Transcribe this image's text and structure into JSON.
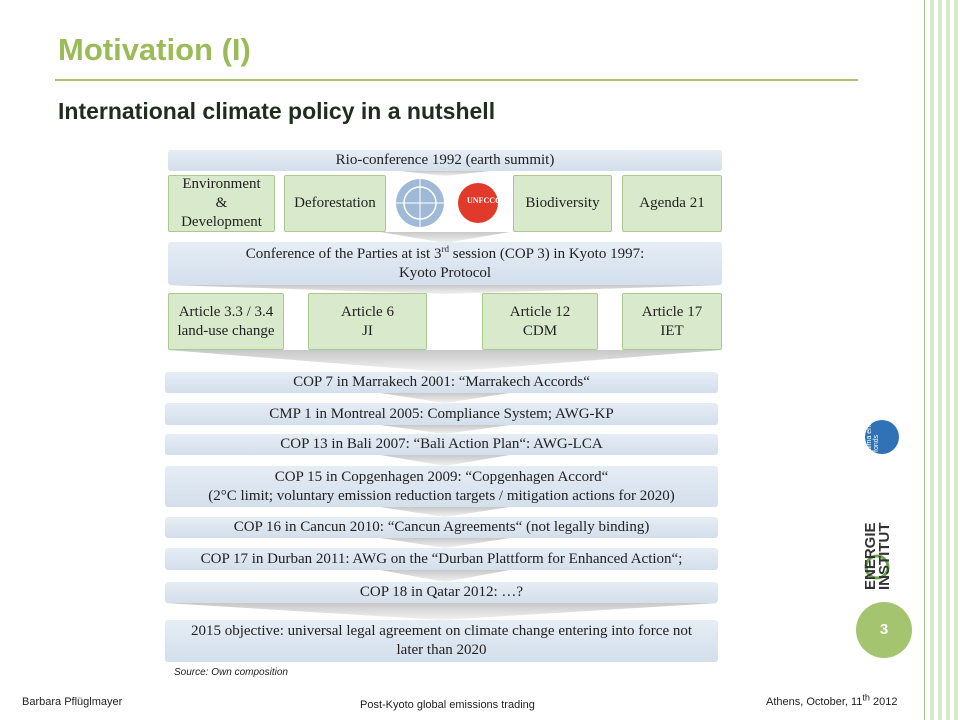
{
  "slide": {
    "title": "Motivation (I)",
    "subtitle": "International climate policy in a nutshell",
    "diagram": {
      "header": "Rio-conference 1992 (earth summit)",
      "topics": [
        [
          "Environment",
          "&",
          "Development"
        ],
        [
          "Deforestation"
        ],
        [
          "Biodiversity"
        ],
        [
          "Agenda 21"
        ]
      ],
      "logo_text": "UNFCCC",
      "cop3": {
        "before": "Conference of the Parties at ist 3",
        "sup": "rd",
        "after": " session (COP 3) in Kyoto 1997:",
        "line2": "Kyoto Protocol"
      },
      "articles": [
        [
          "Article 3.3 / 3.4",
          "land-use change"
        ],
        [
          "Article 6",
          "JI"
        ],
        [
          "Article 12",
          "CDM"
        ],
        [
          "Article 17",
          "IET"
        ]
      ],
      "milestones": [
        [
          "COP 7 in Marrakech 2001: “Marrakech Accords“"
        ],
        [
          "CMP 1 in Montreal 2005: Compliance System; AWG-KP"
        ],
        [
          "COP 13 in Bali 2007: “Bali Action Plan“: AWG-LCA"
        ],
        [
          "COP 15 in Copgenhagen 2009: “Copgenhagen Accord“",
          "(2°C limit; voluntary emission reduction targets / mitigation actions for 2020)"
        ],
        [
          "COP 16 in Cancun 2010: “Cancun Agreements“ (not legally binding)"
        ],
        [
          "COP 17 in Durban 2011: AWG on the “Durban Plattform for Enhanced Action“;"
        ],
        [
          "COP 18 in Qatar 2012: …?"
        ]
      ],
      "objective": [
        "2015 objective: universal legal agreement on climate change entering into force not",
        "later than 2020"
      ]
    },
    "source": "Source: Own composition",
    "logos": {
      "energie": "ENERGIE",
      "institut": "INSTITUT",
      "klima": "klima energie fonds"
    },
    "page_number": "3",
    "footer": {
      "author": "Barbara Pflüglmayer",
      "topic": "Post-Kyoto global emissions trading",
      "place_date": "Athens, October, 11",
      "place_sup": "th",
      "year": " 2012"
    }
  }
}
